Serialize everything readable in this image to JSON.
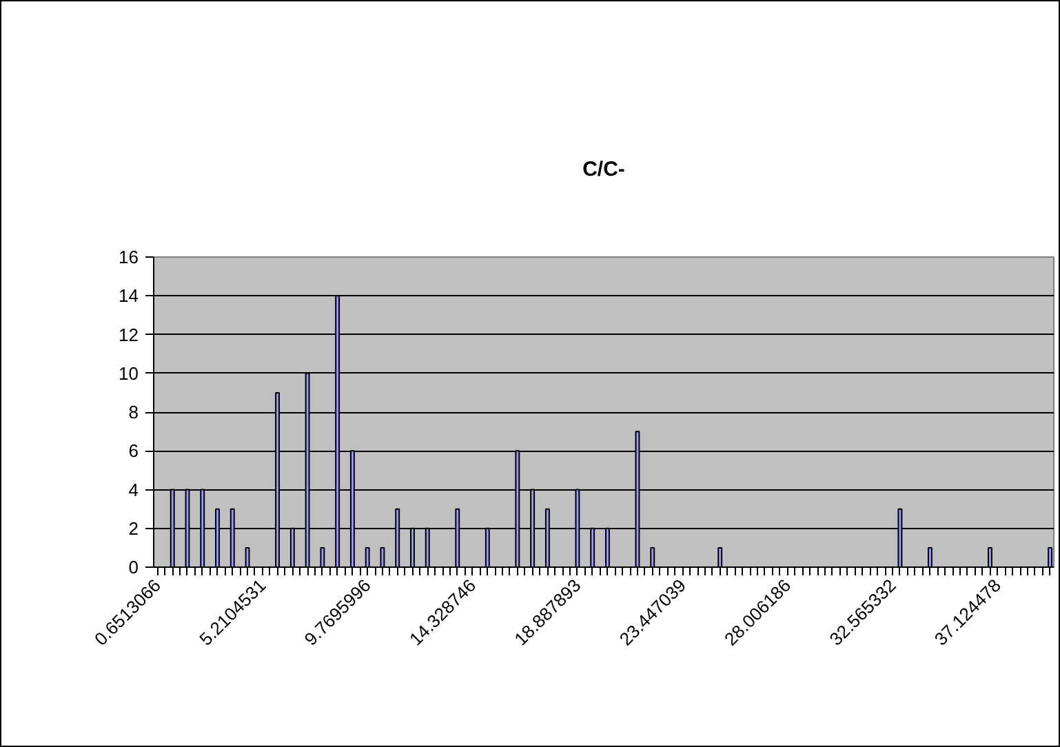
{
  "chart_data": {
    "type": "bar",
    "title": "C/C-",
    "categories": [
      "0.6513066",
      null,
      null,
      null,
      null,
      null,
      null,
      null,
      null,
      null,
      null,
      null,
      null,
      null,
      "5.2104531",
      null,
      null,
      null,
      null,
      null,
      null,
      null,
      null,
      null,
      null,
      null,
      null,
      null,
      "9.7695996",
      null,
      null,
      null,
      null,
      null,
      null,
      null,
      null,
      null,
      null,
      null,
      null,
      null,
      "14.328746",
      null,
      null,
      null,
      null,
      null,
      null,
      null,
      null,
      null,
      null,
      null,
      null,
      null,
      "18.887893",
      null,
      null,
      null,
      null,
      null,
      null,
      null,
      null,
      null,
      null,
      null,
      null,
      null,
      "23.447039",
      null,
      null,
      null,
      null,
      null,
      null,
      null,
      null,
      null,
      null,
      null,
      null,
      null,
      "28.006186",
      null,
      null,
      null,
      null,
      null,
      null,
      null,
      null,
      null,
      null,
      null,
      null,
      null,
      "32.565332",
      null,
      null,
      null,
      null,
      null,
      null,
      null,
      null,
      null,
      null,
      null,
      null,
      null,
      "37.124478",
      null,
      null,
      null,
      null,
      null,
      null,
      null
    ],
    "values": [
      0,
      0,
      4,
      0,
      4,
      0,
      4,
      0,
      3,
      0,
      3,
      0,
      1,
      0,
      0,
      0,
      9,
      0,
      2,
      0,
      10,
      0,
      1,
      0,
      14,
      0,
      6,
      0,
      1,
      0,
      1,
      0,
      3,
      0,
      2,
      0,
      2,
      0,
      0,
      0,
      3,
      0,
      0,
      0,
      2,
      0,
      0,
      0,
      6,
      0,
      4,
      0,
      3,
      0,
      0,
      0,
      4,
      0,
      2,
      0,
      2,
      0,
      0,
      0,
      7,
      0,
      1,
      0,
      0,
      0,
      0,
      0,
      0,
      0,
      0,
      1,
      0,
      0,
      0,
      0,
      0,
      0,
      0,
      0,
      0,
      0,
      0,
      0,
      0,
      0,
      0,
      0,
      0,
      0,
      0,
      0,
      0,
      0,
      0,
      3,
      0,
      0,
      0,
      1,
      0,
      0,
      0,
      0,
      0,
      0,
      0,
      1,
      0,
      0,
      0,
      0,
      0,
      0,
      0,
      1
    ],
    "color": "#9999ff",
    "ylim": [
      0,
      16
    ],
    "yticks": [
      0,
      2,
      4,
      6,
      8,
      10,
      12,
      14,
      16
    ],
    "grid": "y"
  }
}
